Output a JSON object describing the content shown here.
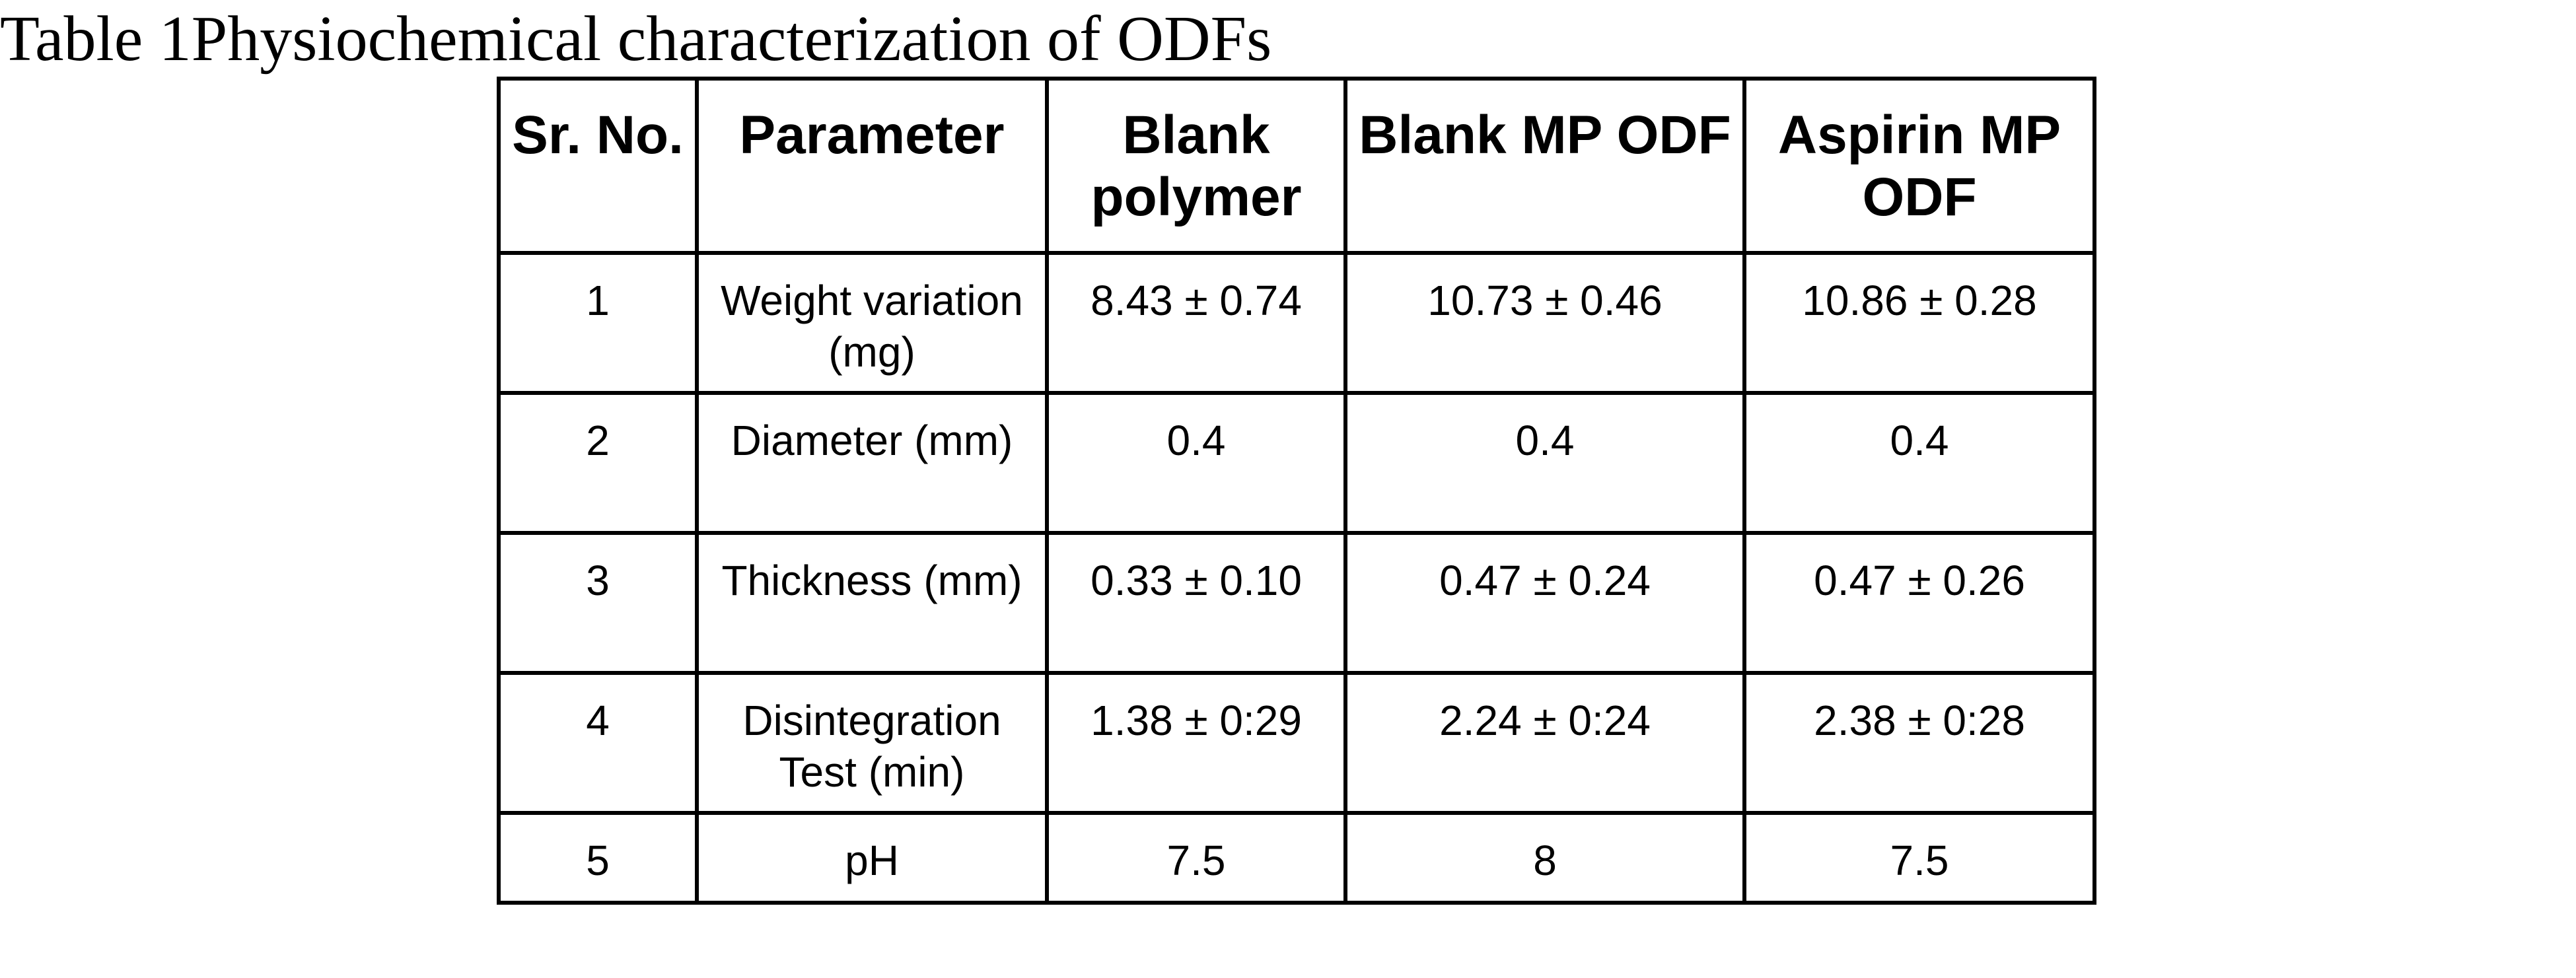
{
  "caption": "Table 1Physiochemical characterization of ODFs",
  "table": {
    "headers": [
      "Sr. No.",
      "Parameter",
      "Blank polymer",
      "Blank MP ODF",
      "Aspirin MP ODF"
    ],
    "rows": [
      [
        "1",
        "Weight variation (mg)",
        "8.43 ± 0.74",
        "10.73 ± 0.46",
        "10.86 ± 0.28"
      ],
      [
        "2",
        "Diameter (mm)",
        "0.4",
        "0.4",
        "0.4"
      ],
      [
        "3",
        "Thickness (mm)",
        "0.33 ± 0.10",
        "0.47 ± 0.24",
        "0.47 ± 0.26"
      ],
      [
        "4",
        "Disintegration Test (min)",
        "1.38 ± 0:29",
        "2.24 ± 0:24",
        "2.38 ± 0:28"
      ],
      [
        "5",
        "pH",
        "7.5",
        "8",
        "7.5"
      ]
    ]
  }
}
